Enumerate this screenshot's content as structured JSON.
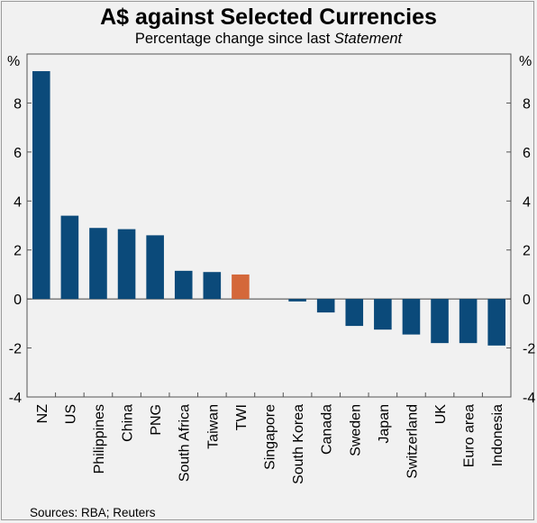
{
  "title": "A$ against Selected Currencies",
  "subtitle_pre": "Percentage change since last ",
  "subtitle_italic": "Statement",
  "source": "Sources: RBA; Reuters",
  "colors": {
    "bar": "#0b4a7a",
    "highlight": "#d4683a",
    "background": "#f1f1f1"
  },
  "chart_data": {
    "type": "bar",
    "title": "A$ against Selected Currencies",
    "subtitle": "Percentage change since last Statement",
    "unit_label_left": "%",
    "unit_label_right": "%",
    "ylim": [
      -4,
      10
    ],
    "yticks": [
      -4,
      -2,
      0,
      2,
      4,
      6,
      8
    ],
    "ytick_labels": [
      "-4",
      "-2",
      "0",
      "2",
      "4",
      "6",
      "8"
    ],
    "grid": false,
    "categories": [
      "NZ",
      "US",
      "Philippines",
      "China",
      "PNG",
      "South Africa",
      "Taiwan",
      "TWI",
      "Singapore",
      "South Korea",
      "Canada",
      "Sweden",
      "Japan",
      "Switzerland",
      "UK",
      "Euro area",
      "Indonesia"
    ],
    "values": [
      9.3,
      3.4,
      2.9,
      2.85,
      2.6,
      1.15,
      1.1,
      1.0,
      0.0,
      -0.1,
      -0.55,
      -1.1,
      -1.25,
      -1.45,
      -1.8,
      -1.8,
      -1.9
    ],
    "highlight_category": "TWI"
  }
}
